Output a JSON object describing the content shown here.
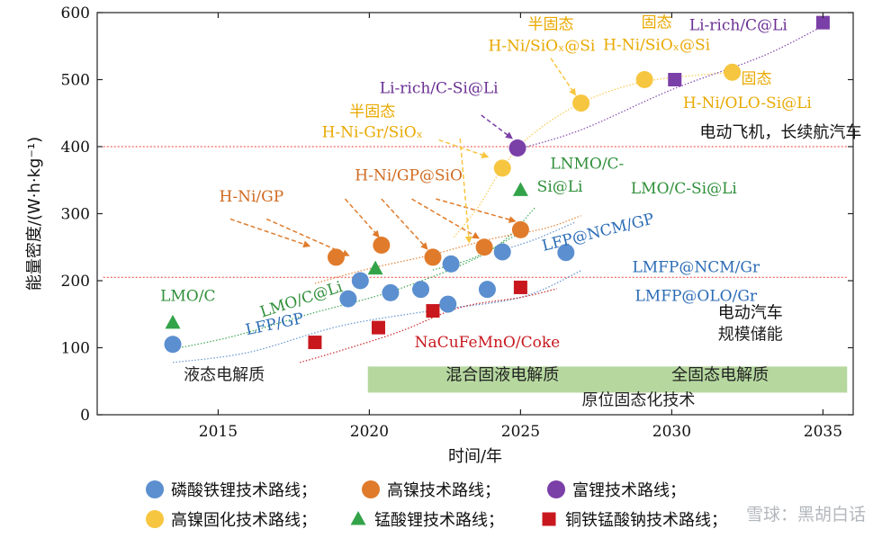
{
  "chart_data": {
    "type": "scatter",
    "xlabel": "时间/年",
    "ylabel": "能量密度/(W·h·kg⁻¹)",
    "xlim": [
      2011,
      2036
    ],
    "ylim": [
      0,
      600
    ],
    "x_ticks": [
      2015,
      2020,
      2025,
      2030,
      2035
    ],
    "y_ticks": [
      0,
      100,
      200,
      300,
      400,
      500,
      600
    ],
    "grid": false,
    "legend_position": "bottom",
    "colors": {
      "lfp": "#5b8fd0",
      "ni": "#e07b2b",
      "li_rich": "#7b3fa8",
      "solid_ni": "#f7c640",
      "lmo": "#33a34a",
      "nacu": "#c8181e",
      "ref_line": "#e8413a",
      "band": "#a9d18e",
      "text_blue": "#2a6bb5",
      "text_orange": "#d06a20",
      "text_green": "#2f8f3a",
      "text_purple": "#6a2f93",
      "text_red": "#c8181e",
      "text_yellow": "#e9a900"
    },
    "reference_lines": [
      {
        "y": 400,
        "label": "电动飞机，长续航汽车"
      },
      {
        "y": 205,
        "label": "电动汽车"
      }
    ],
    "zone_labels": {
      "storage": "规模储能",
      "liquid": "液态电解质",
      "hybrid": "混合固液电解质",
      "solid": "全固态电解质",
      "insitu": "原位固态化技术"
    },
    "series": [
      {
        "name": "磷酸铁锂技术路线",
        "key": "lfp",
        "marker": "circle",
        "points": [
          [
            2013.5,
            105
          ],
          [
            2019.3,
            173
          ],
          [
            2019.7,
            200
          ],
          [
            2020.7,
            182
          ],
          [
            2021.7,
            187
          ],
          [
            2022.6,
            165
          ],
          [
            2022.7,
            225
          ],
          [
            2023.9,
            187
          ],
          [
            2024.4,
            243
          ],
          [
            2026.5,
            242
          ]
        ]
      },
      {
        "name": "高镍技术路线",
        "key": "ni",
        "marker": "circle",
        "points": [
          [
            2018.9,
            235
          ],
          [
            2020.4,
            253
          ],
          [
            2022.1,
            235
          ],
          [
            2023.8,
            250
          ],
          [
            2025.0,
            276
          ]
        ]
      },
      {
        "name": "富锂技术路线",
        "key": "li_rich",
        "marker": "circle",
        "points": [
          [
            2024.9,
            398
          ]
        ]
      },
      {
        "name": "富锂技术路线",
        "key": "li_rich",
        "marker": "square",
        "in_legend": false,
        "points": [
          [
            2030.1,
            500
          ],
          [
            2035.0,
            585
          ]
        ]
      },
      {
        "name": "高镍固化技术路线",
        "key": "solid_ni",
        "marker": "circle",
        "points": [
          [
            2024.4,
            368
          ],
          [
            2027.0,
            465
          ],
          [
            2029.1,
            500
          ],
          [
            2032.0,
            511
          ]
        ]
      },
      {
        "name": "锰酸锂技术路线",
        "key": "lmo",
        "marker": "triangle",
        "points": [
          [
            2013.5,
            137
          ],
          [
            2020.2,
            218
          ],
          [
            2025.0,
            335
          ]
        ]
      },
      {
        "name": "铜铁锰酸钠技术路线",
        "key": "nacu",
        "marker": "square",
        "points": [
          [
            2018.2,
            108
          ],
          [
            2020.3,
            130
          ],
          [
            2022.1,
            155
          ],
          [
            2025.0,
            190
          ]
        ]
      }
    ],
    "trend_lines": [
      {
        "key": "lfp",
        "points": [
          [
            2013.5,
            78
          ],
          [
            2016,
            93
          ],
          [
            2019,
            132
          ],
          [
            2022,
            155
          ],
          [
            2025,
            175
          ],
          [
            2027,
            215
          ]
        ]
      },
      {
        "key": "lmo",
        "points": [
          [
            2013.5,
            98
          ],
          [
            2015.5,
            117
          ],
          [
            2018,
            150
          ],
          [
            2021,
            188
          ],
          [
            2024,
            245
          ],
          [
            2025.5,
            310
          ]
        ]
      },
      {
        "key": "ni",
        "points": [
          [
            2018.2,
            196
          ],
          [
            2020,
            218
          ],
          [
            2022,
            238
          ],
          [
            2024,
            262
          ],
          [
            2025.8,
            278
          ],
          [
            2027,
            297
          ]
        ]
      },
      {
        "key": "nacu",
        "points": [
          [
            2017.7,
            78
          ],
          [
            2019,
            95
          ],
          [
            2021,
            124
          ],
          [
            2023,
            160
          ],
          [
            2025,
            175
          ],
          [
            2026.2,
            188
          ]
        ]
      },
      {
        "key": "lfp",
        "points": [
          [
            2024.5,
            247
          ],
          [
            2025.5,
            262
          ],
          [
            2026.8,
            287
          ]
        ]
      },
      {
        "key": "lmo",
        "points": [
          [
            2022.1,
            216
          ],
          [
            2023.5,
            235
          ],
          [
            2025,
            272
          ]
        ]
      },
      {
        "key": "solid_ni",
        "points": [
          [
            2022.8,
            265
          ],
          [
            2023.6,
            310
          ],
          [
            2024.4,
            368
          ],
          [
            2025.3,
            415
          ],
          [
            2027,
            465
          ],
          [
            2029.1,
            497
          ],
          [
            2032,
            511
          ]
        ]
      },
      {
        "key": "li_rich",
        "points": [
          [
            2024.8,
            395
          ],
          [
            2027,
            425
          ],
          [
            2030,
            485
          ],
          [
            2033,
            535
          ],
          [
            2035,
            580
          ]
        ]
      }
    ],
    "point_labels": [
      {
        "key": "lmo",
        "text": "LMO/C",
        "x": 2014.0,
        "y": 170,
        "anchor": "middle"
      },
      {
        "key": "lmo",
        "text": "LMO/C@Li",
        "x": 2017.8,
        "y": 165,
        "anchor": "middle",
        "rotate": -18
      },
      {
        "key": "lfp",
        "text": "LFP/GP",
        "x": 2016.9,
        "y": 128,
        "anchor": "middle",
        "rotate": -12
      },
      {
        "key": "ni",
        "text": "H-Ni/GP",
        "x": 2016.1,
        "y": 318,
        "anchor": "middle"
      },
      {
        "key": "ni",
        "text": "H-Ni/GP@SiO",
        "x": 2021.3,
        "y": 350,
        "anchor": "middle"
      },
      {
        "key": "solid_ni",
        "text": "半固态",
        "x": 2020.1,
        "y": 445,
        "anchor": "middle"
      },
      {
        "key": "solid_ni",
        "text": "H-Ni-Gr/SiOₓ",
        "x": 2020.1,
        "y": 414,
        "anchor": "middle"
      },
      {
        "key": "solid_ni",
        "text": "半固态",
        "x": 2026.0,
        "y": 575,
        "anchor": "middle"
      },
      {
        "key": "solid_ni",
        "text": "H-Ni/SiOₓ@Si",
        "x": 2025.7,
        "y": 543,
        "anchor": "middle"
      },
      {
        "key": "solid_ni",
        "text": "固态",
        "x": 2029.5,
        "y": 578,
        "anchor": "middle"
      },
      {
        "key": "solid_ni",
        "text": "H-Ni/SiOₓ@Si",
        "x": 2029.5,
        "y": 544,
        "anchor": "middle"
      },
      {
        "key": "solid_ni",
        "text": "固态",
        "x": 2032.8,
        "y": 494,
        "anchor": "middle"
      },
      {
        "key": "solid_ni",
        "text": "H-Ni/OLO-Si@Li",
        "x": 2032.5,
        "y": 458,
        "anchor": "middle"
      },
      {
        "key": "li_rich",
        "text": "Li-rich/C@Li",
        "x": 2032.2,
        "y": 574,
        "anchor": "middle"
      },
      {
        "key": "li_rich",
        "text": "Li-rich/C-Si@Li",
        "x": 2022.3,
        "y": 480,
        "anchor": "middle"
      },
      {
        "key": "lmo",
        "text": "LNMO/C-",
        "x": 2027.2,
        "y": 367,
        "anchor": "middle"
      },
      {
        "key": "lmo",
        "text": "Si@Li",
        "x": 2026.3,
        "y": 333,
        "anchor": "middle"
      },
      {
        "key": "lmo",
        "text": "LMO/C-Si@Li",
        "x": 2030.4,
        "y": 330,
        "anchor": "middle"
      },
      {
        "key": "lfp",
        "text": "LFP@NCM/GP",
        "x": 2027.6,
        "y": 265,
        "anchor": "middle",
        "rotate": -14
      },
      {
        "key": "lfp",
        "text": "LMFP@NCM/Gr",
        "x": 2030.8,
        "y": 213,
        "anchor": "middle"
      },
      {
        "key": "lfp",
        "text": "LMFP@OLO/Gr",
        "x": 2030.8,
        "y": 170,
        "anchor": "middle"
      },
      {
        "key": "nacu",
        "text": "NaCuFeMnO/Coke",
        "x": 2023.9,
        "y": 101,
        "anchor": "middle"
      }
    ],
    "arrows": [
      {
        "key": "ni",
        "from": [
          2015.4,
          292
        ],
        "to": [
          2018.0,
          252
        ]
      },
      {
        "key": "ni",
        "from": [
          2016.6,
          292
        ],
        "to": [
          2019.3,
          238
        ]
      },
      {
        "key": "ni",
        "from": [
          2019.2,
          322
        ],
        "to": [
          2020.3,
          266
        ]
      },
      {
        "key": "ni",
        "from": [
          2020.4,
          322
        ],
        "to": [
          2021.9,
          248
        ]
      },
      {
        "key": "ni",
        "from": [
          2021.4,
          322
        ],
        "to": [
          2023.6,
          264
        ]
      },
      {
        "key": "ni",
        "from": [
          2022.2,
          322
        ],
        "to": [
          2024.8,
          289
        ]
      },
      {
        "key": "solid_ni",
        "from": [
          2022.3,
          410
        ],
        "to": [
          2023.9,
          385
        ]
      },
      {
        "key": "solid_ni",
        "from": [
          2026.0,
          532
        ],
        "to": [
          2026.8,
          478
        ]
      },
      {
        "key": "solid_ni",
        "from": [
          2023.0,
          412
        ],
        "to": [
          2023.3,
          258
        ]
      },
      {
        "key": "li_rich",
        "from": [
          2023.7,
          447
        ],
        "to": [
          2024.7,
          413
        ]
      }
    ]
  },
  "watermark": "雪球：黑胡白话"
}
